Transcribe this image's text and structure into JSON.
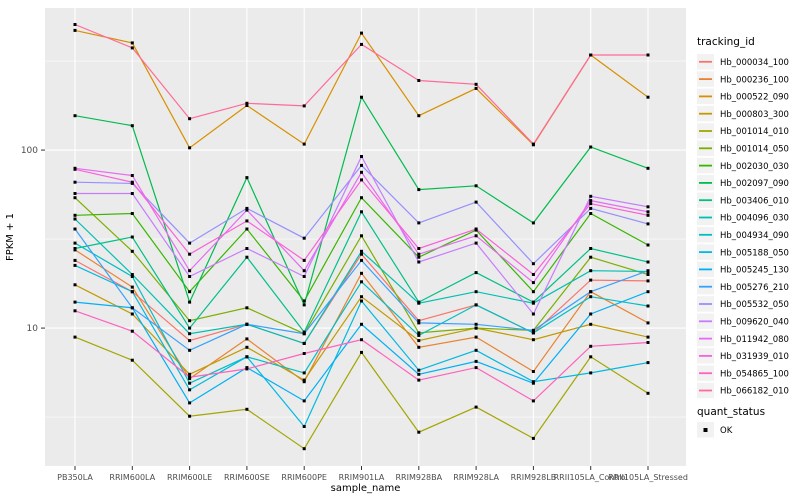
{
  "chart_data": {
    "type": "line",
    "title": "",
    "xlabel": "sample_name",
    "ylabel": "FPKM + 1",
    "y_scale": "log10",
    "ylim": [
      1.68,
      628
    ],
    "y_ticks": [
      10,
      100
    ],
    "y_minor": [
      3.162,
      31.62,
      316.2
    ],
    "grid": "on",
    "panel_bg": "#EBEBEB",
    "grid_color": "#FFFFFF",
    "point_shape": "square",
    "point_color": "#000000",
    "tick_label_color": "#4D4D4D",
    "categories": [
      "PB350LA",
      "RRIM600LA",
      "RRIM600LE",
      "RRIM600SE",
      "RRIM600PE",
      "RRIM901LA",
      "RRIM928BA",
      "RRIM928LA",
      "RRIM928LB",
      "RRII105LA_Control",
      "RRII105LA_Stressed"
    ],
    "legend": {
      "title": "tracking_id",
      "position": "right"
    },
    "quant_legend": {
      "title": "quant_status",
      "items": [
        "OK"
      ]
    },
    "series": [
      {
        "name": "Hb_000034_100",
        "color": "#F8766D",
        "values": [
          24,
          16,
          8.5,
          10.5,
          8.2,
          26,
          11,
          13.5,
          9.4,
          18.6,
          18.4
        ]
      },
      {
        "name": "Hb_000236_100",
        "color": "#EA8331",
        "values": [
          27.5,
          17,
          5.2,
          8.7,
          5.0,
          20.3,
          7.8,
          8.9,
          5.7,
          16,
          10.7
        ]
      },
      {
        "name": "Hb_000522_090",
        "color": "#D89000",
        "values": [
          470,
          400,
          103,
          178,
          108,
          454,
          156,
          222,
          107,
          342,
          198
        ]
      },
      {
        "name": "Hb_000803_300",
        "color": "#C09B00",
        "values": [
          17.5,
          12,
          5.5,
          7.8,
          5.1,
          15,
          8.5,
          10,
          8.6,
          10.5,
          8.9
        ]
      },
      {
        "name": "Hb_001014_010",
        "color": "#A3A500",
        "values": [
          8.9,
          6.6,
          3.2,
          3.5,
          2.1,
          7.3,
          2.6,
          3.6,
          2.4,
          6.9,
          4.3
        ]
      },
      {
        "name": "Hb_001014_050",
        "color": "#7CAE00",
        "values": [
          54,
          27,
          11,
          13,
          9.3,
          33,
          9.4,
          10,
          9.7,
          25,
          20
        ]
      },
      {
        "name": "Hb_002030_030",
        "color": "#39B600",
        "values": [
          43,
          44,
          16,
          36,
          14.2,
          54,
          25,
          35.5,
          16,
          44,
          29.3
        ]
      },
      {
        "name": "Hb_002097_090",
        "color": "#00BB4E",
        "values": [
          156,
          137,
          14,
          70,
          13.5,
          198,
          60,
          63,
          39,
          104,
          79
        ]
      },
      {
        "name": "Hb_003406_010",
        "color": "#00C087",
        "values": [
          28,
          32.5,
          10,
          25,
          9.5,
          45,
          14,
          20.5,
          14,
          28,
          23.5
        ]
      },
      {
        "name": "Hb_004096_030",
        "color": "#00C0B2",
        "values": [
          41,
          20,
          9.3,
          10.5,
          8.2,
          27,
          13.8,
          16,
          13.8,
          21,
          20.8
        ]
      },
      {
        "name": "Hb_004934_090",
        "color": "#00BFC4",
        "values": [
          30,
          19.5,
          4.9,
          6.9,
          5.6,
          18.2,
          9.1,
          13.5,
          9.4,
          15,
          13.3
        ]
      },
      {
        "name": "Hb_005188_050",
        "color": "#00BAE0",
        "values": [
          22.5,
          16,
          4.5,
          6.9,
          2.8,
          14.2,
          5.8,
          7.5,
          5.0,
          5.6,
          6.4
        ]
      },
      {
        "name": "Hb_005245_130",
        "color": "#00B0F6",
        "values": [
          14,
          13,
          3.8,
          6.0,
          3.9,
          10.5,
          5.5,
          6.5,
          4.9,
          12,
          16
        ]
      },
      {
        "name": "Hb_005276_210",
        "color": "#35A2FF",
        "values": [
          36,
          13,
          7.5,
          10.5,
          9.3,
          24,
          10.7,
          10.5,
          9.7,
          16,
          21
        ]
      },
      {
        "name": "Hb_005532_050",
        "color": "#9590FF",
        "values": [
          66,
          65,
          30,
          47,
          32,
          82,
          39,
          51,
          23,
          47,
          38.5
        ]
      },
      {
        "name": "Hb_009620_040",
        "color": "#C77CFF",
        "values": [
          57,
          57,
          19.5,
          28,
          19.5,
          92,
          23.5,
          30,
          12,
          55,
          48
        ]
      },
      {
        "name": "Hb_011942_080",
        "color": "#E76BF3",
        "values": [
          79,
          72,
          21,
          46,
          21,
          75,
          26,
          33,
          18,
          52,
          45
        ]
      },
      {
        "name": "Hb_031939_010",
        "color": "#FA62DB",
        "values": [
          78,
          66,
          26,
          40,
          24,
          68,
          28,
          36,
          20,
          50,
          43
        ]
      },
      {
        "name": "Hb_054865_100",
        "color": "#FF62BC",
        "values": [
          12.5,
          9.6,
          5.3,
          5.9,
          7.2,
          8.6,
          5.1,
          6.0,
          3.9,
          7.9,
          8.3
        ]
      },
      {
        "name": "Hb_066182_010",
        "color": "#FF6A98",
        "values": [
          507,
          375,
          150,
          183,
          177,
          392,
          246,
          234,
          108,
          342,
          342
        ]
      }
    ]
  }
}
